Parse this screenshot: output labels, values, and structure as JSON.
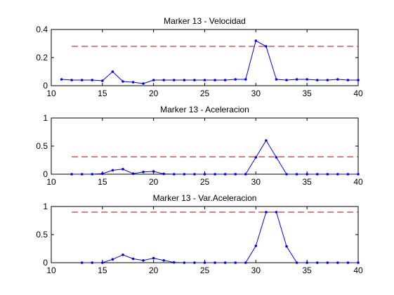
{
  "colors": {
    "series": "#0000ff",
    "threshold": "#cc0000",
    "axes": "#000000",
    "background": "#ffffff"
  },
  "chart_data": [
    {
      "type": "line",
      "title": "Marker 13 - Velocidad",
      "xlabel": "",
      "ylabel": "",
      "xlim": [
        10,
        40
      ],
      "ylim": [
        0,
        0.4
      ],
      "xticks": [
        10,
        15,
        20,
        25,
        30,
        35,
        40
      ],
      "yticks": [
        0,
        0.2,
        0.4
      ],
      "xtick_labels": [
        "10",
        "15",
        "20",
        "25",
        "30",
        "35",
        "40"
      ],
      "ytick_labels": [
        "0",
        "0.2",
        "0.4"
      ],
      "grid": false,
      "series": [
        {
          "style": "solid-marker",
          "x": [
            11,
            12,
            13,
            14,
            15,
            16,
            17,
            18,
            19,
            20,
            21,
            22,
            23,
            24,
            25,
            26,
            27,
            28,
            29,
            30,
            31,
            32,
            33,
            34,
            35,
            36,
            37,
            38,
            39,
            40
          ],
          "y": [
            0.045,
            0.04,
            0.04,
            0.04,
            0.035,
            0.1,
            0.03,
            0.025,
            0.015,
            0.04,
            0.04,
            0.04,
            0.04,
            0.04,
            0.04,
            0.04,
            0.04,
            0.045,
            0.045,
            0.32,
            0.28,
            0.045,
            0.04,
            0.045,
            0.045,
            0.04,
            0.04,
            0.045,
            0.04,
            0.04
          ]
        },
        {
          "style": "dashed",
          "x": [
            12,
            40
          ],
          "y": [
            0.28,
            0.28
          ]
        }
      ]
    },
    {
      "type": "line",
      "title": "Marker 13 - Aceleracion",
      "xlabel": "",
      "ylabel": "",
      "xlim": [
        10,
        40
      ],
      "ylim": [
        0,
        1
      ],
      "xticks": [
        10,
        15,
        20,
        25,
        30,
        35,
        40
      ],
      "yticks": [
        0,
        0.5,
        1
      ],
      "xtick_labels": [
        "10",
        "15",
        "20",
        "25",
        "30",
        "35",
        "40"
      ],
      "ytick_labels": [
        "0",
        "0.5",
        "1"
      ],
      "grid": false,
      "series": [
        {
          "style": "solid-marker",
          "x": [
            12,
            13,
            14,
            15,
            16,
            17,
            18,
            19,
            20,
            21,
            22,
            23,
            24,
            25,
            26,
            27,
            28,
            29,
            30,
            31,
            32,
            33,
            34,
            35,
            36,
            37,
            38,
            39,
            40
          ],
          "y": [
            0,
            0,
            0,
            0.01,
            0.07,
            0.09,
            0.01,
            0.04,
            0.05,
            0.005,
            0,
            0,
            0,
            0,
            0,
            0,
            0,
            0,
            0.3,
            0.6,
            0.3,
            0,
            0,
            0,
            0,
            0,
            0,
            0,
            0
          ]
        },
        {
          "style": "dashed",
          "x": [
            12,
            40
          ],
          "y": [
            0.31,
            0.31
          ]
        }
      ]
    },
    {
      "type": "line",
      "title": "Marker 13 - Var.Aceleracion",
      "xlabel": "",
      "ylabel": "",
      "xlim": [
        10,
        40
      ],
      "ylim": [
        0,
        1
      ],
      "xticks": [
        10,
        15,
        20,
        25,
        30,
        35,
        40
      ],
      "yticks": [
        0,
        0.5,
        1
      ],
      "xtick_labels": [
        "10",
        "15",
        "20",
        "25",
        "30",
        "35",
        "40"
      ],
      "ytick_labels": [
        "0",
        "0.5",
        "1"
      ],
      "grid": false,
      "series": [
        {
          "style": "solid-marker",
          "x": [
            13,
            14,
            15,
            16,
            17,
            18,
            19,
            20,
            21,
            22,
            23,
            24,
            25,
            26,
            27,
            28,
            29,
            30,
            31,
            32,
            33,
            34,
            35,
            36,
            37,
            38,
            39,
            40
          ],
          "y": [
            0,
            0,
            0,
            0.06,
            0.14,
            0.07,
            0.04,
            0.08,
            0.04,
            0.005,
            0,
            0,
            0,
            0,
            0,
            0,
            0,
            0.3,
            0.9,
            0.9,
            0.29,
            0,
            0,
            0,
            0,
            0,
            0,
            0
          ],
          "note_hidden": null
        },
        {
          "style": "dashed",
          "x": [
            12,
            40
          ],
          "y": [
            0.9,
            0.9
          ]
        }
      ]
    }
  ]
}
